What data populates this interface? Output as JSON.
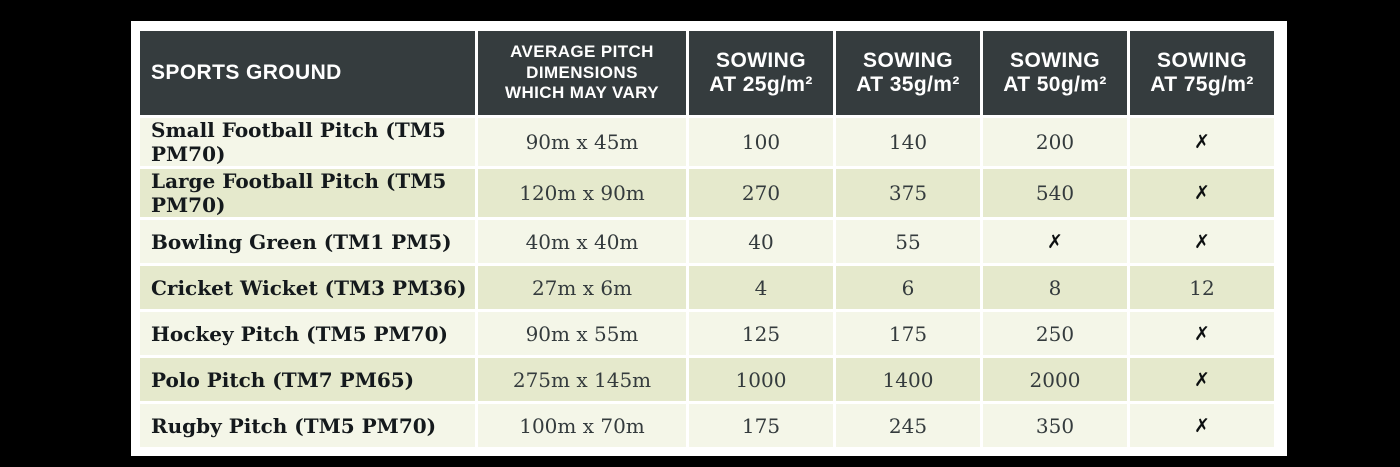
{
  "title": "Sports ground sowing rates table",
  "colors": {
    "page_bg": "#000000",
    "card_bg": "#ffffff",
    "header_bg": "#353c3e",
    "header_text": "#ffffff",
    "row_light": "#f4f6e8",
    "row_green": "#e5e9cc",
    "body_text": "#343b3d"
  },
  "not_recommended_symbol": "✗",
  "table": {
    "header": {
      "ground": "SPORTS GROUND",
      "dimensions_lines": [
        "AVERAGE PITCH",
        "DIMENSIONS",
        "WHICH MAY VARY"
      ],
      "sowing": [
        {
          "line1": "SOWING",
          "line2": "AT 25g/m²"
        },
        {
          "line1": "SOWING",
          "line2": "AT 35g/m²"
        },
        {
          "line1": "SOWING",
          "line2": "AT 50g/m²"
        },
        {
          "line1": "SOWING",
          "line2": "AT 75g/m²"
        }
      ]
    },
    "rows": [
      {
        "ground": "Small Football Pitch (TM5 PM70)",
        "dimensions": "90m x 45m",
        "s25": "100",
        "s35": "140",
        "s50": "200",
        "s75": "✗"
      },
      {
        "ground": "Large Football Pitch (TM5 PM70)",
        "dimensions": "120m x 90m",
        "s25": "270",
        "s35": "375",
        "s50": "540",
        "s75": "✗"
      },
      {
        "ground": "Bowling Green (TM1 PM5)",
        "dimensions": "40m x 40m",
        "s25": "40",
        "s35": "55",
        "s50": "✗",
        "s75": "✗"
      },
      {
        "ground": "Cricket Wicket (TM3 PM36)",
        "dimensions": "27m x 6m",
        "s25": "4",
        "s35": "6",
        "s50": "8",
        "s75": "12"
      },
      {
        "ground": "Hockey Pitch (TM5 PM70)",
        "dimensions": "90m x 55m",
        "s25": "125",
        "s35": "175",
        "s50": "250",
        "s75": "✗"
      },
      {
        "ground": "Polo Pitch (TM7 PM65)",
        "dimensions": "275m x 145m",
        "s25": "1000",
        "s35": "1400",
        "s50": "2000",
        "s75": "✗"
      },
      {
        "ground": "Rugby Pitch (TM5 PM70)",
        "dimensions": "100m x 70m",
        "s25": "175",
        "s35": "245",
        "s50": "350",
        "s75": "✗"
      }
    ]
  }
}
